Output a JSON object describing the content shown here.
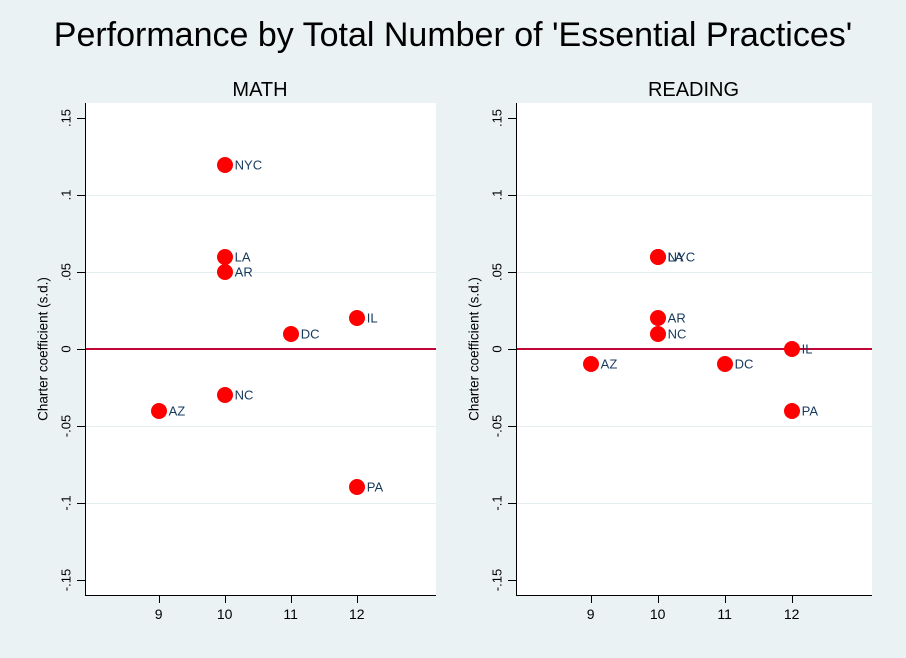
{
  "title": "Performance by Total Number of 'Essential Practices'",
  "colors": {
    "background": "#EAF2F3",
    "plot_background": "#FFFFFF",
    "gridline": "#E4EDF0",
    "zero_line": "#C10534",
    "marker": "#FF0000",
    "marker_label": "#16395C",
    "axis": "#000000"
  },
  "chart_data": [
    {
      "type": "scatter",
      "title": "MATH",
      "xlabel": "",
      "ylabel": "Charter coefficient (s.d.)",
      "xlim": [
        7.9,
        13.2
      ],
      "ylim": [
        -0.16,
        0.16
      ],
      "x_ticks": [
        9,
        10,
        11,
        12
      ],
      "y_ticks": [
        {
          "value": 0.15,
          "label": ".15"
        },
        {
          "value": 0.1,
          "label": ".1"
        },
        {
          "value": 0.05,
          "label": ".05"
        },
        {
          "value": 0,
          "label": "0"
        },
        {
          "value": -0.05,
          "label": "-.05"
        },
        {
          "value": -0.1,
          "label": "-.1"
        },
        {
          "value": -0.15,
          "label": "-.15"
        }
      ],
      "gridline_values": [
        0.1,
        0.05,
        -0.05,
        -0.1
      ],
      "zero_line": 0,
      "grid": true,
      "legend": "none",
      "points": [
        {
          "label": "NYC",
          "x": 10,
          "y": 0.12
        },
        {
          "label": "LA",
          "x": 10,
          "y": 0.06
        },
        {
          "label": "AR",
          "x": 10,
          "y": 0.05
        },
        {
          "label": "IL",
          "x": 12,
          "y": 0.02
        },
        {
          "label": "DC",
          "x": 11,
          "y": 0.01
        },
        {
          "label": "NC",
          "x": 10,
          "y": -0.03
        },
        {
          "label": "AZ",
          "x": 9,
          "y": -0.04
        },
        {
          "label": "PA",
          "x": 12,
          "y": -0.09
        }
      ]
    },
    {
      "type": "scatter",
      "title": "READING",
      "xlabel": "",
      "ylabel": "Charter coefficient (s.d.)",
      "xlim": [
        7.9,
        13.2
      ],
      "ylim": [
        -0.16,
        0.16
      ],
      "x_ticks": [
        9,
        10,
        11,
        12
      ],
      "y_ticks": [
        {
          "value": 0.15,
          "label": ".15"
        },
        {
          "value": 0.1,
          "label": ".1"
        },
        {
          "value": 0.05,
          "label": ".05"
        },
        {
          "value": 0,
          "label": "0"
        },
        {
          "value": -0.05,
          "label": "-.05"
        },
        {
          "value": -0.1,
          "label": "-.1"
        },
        {
          "value": -0.15,
          "label": "-.15"
        }
      ],
      "gridline_values": [
        0.1,
        0.05,
        -0.05,
        -0.1
      ],
      "zero_line": 0,
      "grid": true,
      "legend": "none",
      "points": [
        {
          "label": "NYC",
          "x": 10,
          "y": 0.06
        },
        {
          "label": "LA",
          "x": 10,
          "y": 0.06
        },
        {
          "label": "AR",
          "x": 10,
          "y": 0.02
        },
        {
          "label": "NC",
          "x": 10,
          "y": 0.01
        },
        {
          "label": "IL",
          "x": 12,
          "y": 0
        },
        {
          "label": "AZ",
          "x": 9,
          "y": -0.01
        },
        {
          "label": "DC",
          "x": 11,
          "y": -0.01
        },
        {
          "label": "PA",
          "x": 12,
          "y": -0.04
        }
      ]
    }
  ]
}
